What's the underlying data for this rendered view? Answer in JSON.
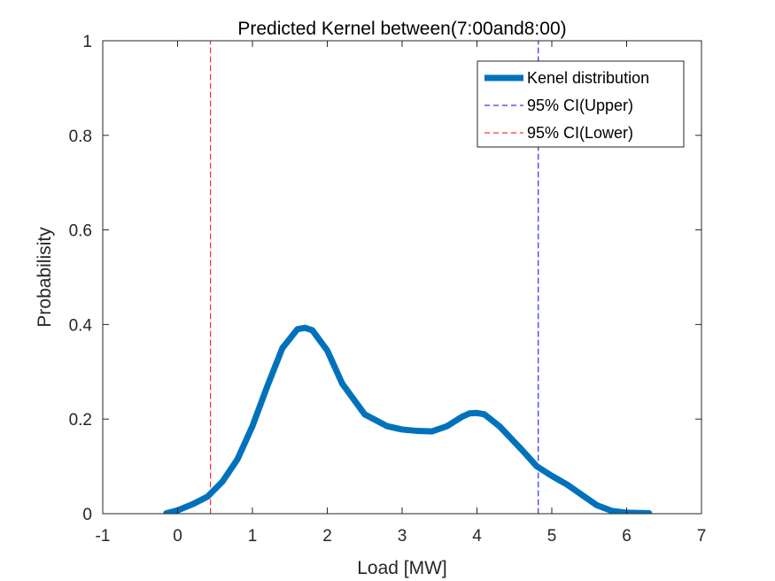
{
  "chart_data": {
    "type": "line",
    "title": "Predicted Kernel between(7:00and8:00)",
    "xlabel": "Load [MW]",
    "ylabel": "Probabilisity",
    "xlim": [
      -1,
      7
    ],
    "ylim": [
      0,
      1
    ],
    "xticks": [
      "-1",
      "0",
      "1",
      "2",
      "3",
      "4",
      "5",
      "6",
      "7"
    ],
    "yticks": [
      "0",
      "0.2",
      "0.4",
      "0.6",
      "0.8",
      "1"
    ],
    "grid": false,
    "legend_location": "top-right",
    "series": [
      {
        "name": "Kenel distribution",
        "color": "#0072BD",
        "style": "solid",
        "x": [
          -0.15,
          0.0,
          0.2,
          0.4,
          0.6,
          0.8,
          1.0,
          1.2,
          1.4,
          1.6,
          1.7,
          1.8,
          2.0,
          2.2,
          2.5,
          2.8,
          3.0,
          3.2,
          3.4,
          3.6,
          3.8,
          3.9,
          4.0,
          4.1,
          4.3,
          4.6,
          4.8,
          5.0,
          5.2,
          5.4,
          5.6,
          5.8,
          6.0,
          6.3
        ],
        "y": [
          0.001,
          0.007,
          0.02,
          0.036,
          0.068,
          0.115,
          0.185,
          0.27,
          0.35,
          0.39,
          0.393,
          0.388,
          0.345,
          0.275,
          0.21,
          0.185,
          0.178,
          0.175,
          0.174,
          0.185,
          0.205,
          0.212,
          0.213,
          0.21,
          0.185,
          0.135,
          0.1,
          0.08,
          0.062,
          0.04,
          0.018,
          0.006,
          0.002,
          0.001
        ]
      },
      {
        "name": "95% CI(Upper)",
        "color": "#0000FF",
        "style": "dashed",
        "x": [
          4.82,
          4.82
        ],
        "y": [
          0,
          1
        ]
      },
      {
        "name": "95% CI(Lower)",
        "color": "#FF0000",
        "style": "dashed",
        "x": [
          0.44,
          0.44
        ],
        "y": [
          0,
          1
        ]
      }
    ]
  }
}
